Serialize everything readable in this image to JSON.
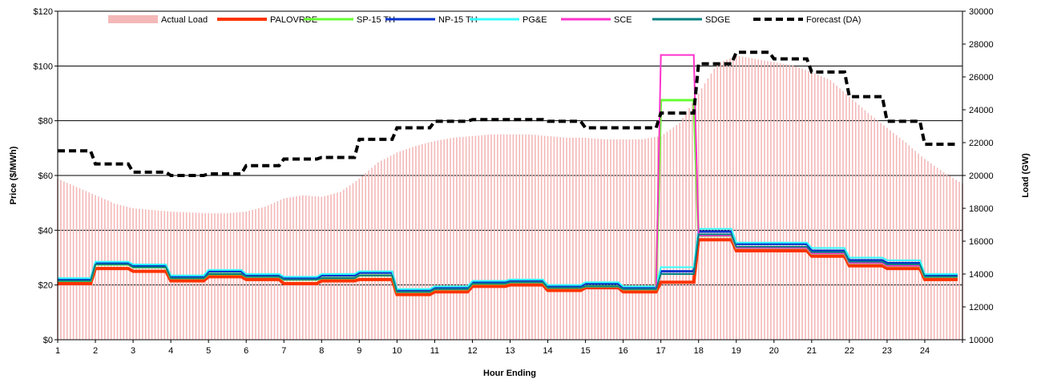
{
  "chart_data": {
    "type": "line",
    "xlabel": "Hour Ending",
    "ylabel": "Price ($/MWh)",
    "y2label": "Load (GW)",
    "x_ticks": [
      "1",
      "2",
      "3",
      "4",
      "5",
      "6",
      "7",
      "8",
      "9",
      "10",
      "11",
      "12",
      "13",
      "14",
      "15",
      "16",
      "17",
      "18",
      "19",
      "20",
      "21",
      "22",
      "23",
      "24"
    ],
    "y_ticks": [
      "$0",
      "$20",
      "$40",
      "$60",
      "$80",
      "$100",
      "$120"
    ],
    "y2_ticks": [
      "10000",
      "12000",
      "14000",
      "16000",
      "18000",
      "20000",
      "22000",
      "24000",
      "26000",
      "28000",
      "30000"
    ],
    "ylim": [
      0,
      120
    ],
    "y2lim": [
      10000,
      30000
    ],
    "xlim": [
      1,
      25
    ],
    "grid": "horizontal",
    "legend_position": "top",
    "load_series": {
      "name": "Actual Load",
      "color": "#f4b8b8",
      "points": [
        [
          1,
          19800
        ],
        [
          1.5,
          19300
        ],
        [
          2,
          18800
        ],
        [
          2.5,
          18300
        ],
        [
          3,
          18000
        ],
        [
          3.5,
          17900
        ],
        [
          4,
          17800
        ],
        [
          5,
          17700
        ],
        [
          5.5,
          17700
        ],
        [
          6,
          17800
        ],
        [
          6.5,
          18100
        ],
        [
          7,
          18600
        ],
        [
          7.5,
          18800
        ],
        [
          8,
          18700
        ],
        [
          8.5,
          19000
        ],
        [
          9,
          19800
        ],
        [
          9.5,
          20800
        ],
        [
          10,
          21400
        ],
        [
          10.5,
          21800
        ],
        [
          11,
          22100
        ],
        [
          11.5,
          22300
        ],
        [
          12,
          22400
        ],
        [
          12.5,
          22500
        ],
        [
          13,
          22500
        ],
        [
          13.5,
          22500
        ],
        [
          14,
          22400
        ],
        [
          14.5,
          22300
        ],
        [
          15,
          22300
        ],
        [
          15.5,
          22200
        ],
        [
          16,
          22200
        ],
        [
          16.5,
          22200
        ],
        [
          17,
          22400
        ],
        [
          17.5,
          23200
        ],
        [
          18,
          25000
        ],
        [
          18.5,
          26800
        ],
        [
          19,
          27300
        ],
        [
          19.5,
          27100
        ],
        [
          20,
          26900
        ],
        [
          20.5,
          26700
        ],
        [
          21,
          26300
        ],
        [
          21.5,
          25800
        ],
        [
          22,
          24800
        ],
        [
          22.5,
          23800
        ],
        [
          23,
          22900
        ],
        [
          23.5,
          22000
        ],
        [
          24,
          21000
        ],
        [
          24.5,
          20200
        ],
        [
          25,
          19500
        ]
      ]
    },
    "forecast_series": {
      "name": "Forecast (DA)",
      "color": "#000000",
      "values": [
        21500,
        20700,
        20200,
        20000,
        20100,
        20600,
        21000,
        21100,
        22200,
        22900,
        23300,
        23400,
        23400,
        23300,
        22900,
        22900,
        23800,
        26800,
        27500,
        27100,
        26300,
        24800,
        23300,
        21900
      ]
    },
    "price_series": [
      {
        "name": "PALOVRDE",
        "color": "#ff3300",
        "width": 4,
        "values": [
          20.5,
          26,
          25,
          21.5,
          23,
          22,
          20.5,
          21.5,
          22,
          16.5,
          17.5,
          19.5,
          20,
          18,
          19,
          17.5,
          21,
          36.5,
          32.5,
          32.5,
          30.5,
          27,
          26,
          22
        ]
      },
      {
        "name": "SP-15 TH",
        "color": "#66ff33",
        "width": 3,
        "values": [
          21.5,
          27.5,
          26.5,
          22.5,
          24,
          23,
          22,
          22.5,
          23.5,
          17.5,
          18.5,
          20.5,
          21,
          19,
          19.5,
          18.5,
          87.5,
          38,
          33.5,
          33.5,
          31.5,
          28,
          27,
          23
        ]
      },
      {
        "name": "NP-15 TH",
        "color": "#0033cc",
        "width": 3,
        "values": [
          22,
          28,
          27,
          23,
          25,
          23.5,
          22.5,
          23.5,
          24.5,
          18,
          19,
          21,
          21.5,
          19.5,
          20.5,
          19,
          25,
          39.5,
          35,
          35,
          32.5,
          29,
          28,
          23.5
        ]
      },
      {
        "name": "PG&E",
        "color": "#33ffff",
        "width": 2,
        "values": [
          22.5,
          28.5,
          27.5,
          23.5,
          25.5,
          24,
          23,
          24,
          25,
          18.5,
          19.5,
          21.5,
          22,
          20,
          21,
          19.5,
          26.5,
          40.5,
          35.5,
          35.5,
          33.5,
          30,
          29,
          24
        ]
      },
      {
        "name": "SCE",
        "color": "#ff33cc",
        "width": 2,
        "values": [
          21.5,
          27.5,
          26.5,
          22.5,
          24,
          23,
          22,
          22.5,
          23.5,
          17.5,
          18.5,
          20.5,
          21,
          19,
          19.5,
          18.5,
          104,
          38,
          33.5,
          33.5,
          31.5,
          28,
          27,
          23
        ]
      },
      {
        "name": "SDGE",
        "color": "#008080",
        "width": 2,
        "values": [
          21.5,
          27.5,
          26.5,
          22.5,
          24,
          23,
          22,
          22.5,
          23.5,
          17.5,
          18.5,
          20.5,
          21,
          19,
          19.5,
          18.5,
          24,
          38.5,
          34,
          34,
          32,
          28.5,
          27.5,
          23
        ]
      }
    ],
    "legend_order": [
      "Actual Load",
      "PALOVRDE",
      "SP-15 TH",
      "NP-15 TH",
      "PG&E",
      "SCE",
      "SDGE",
      "Forecast (DA)"
    ]
  }
}
